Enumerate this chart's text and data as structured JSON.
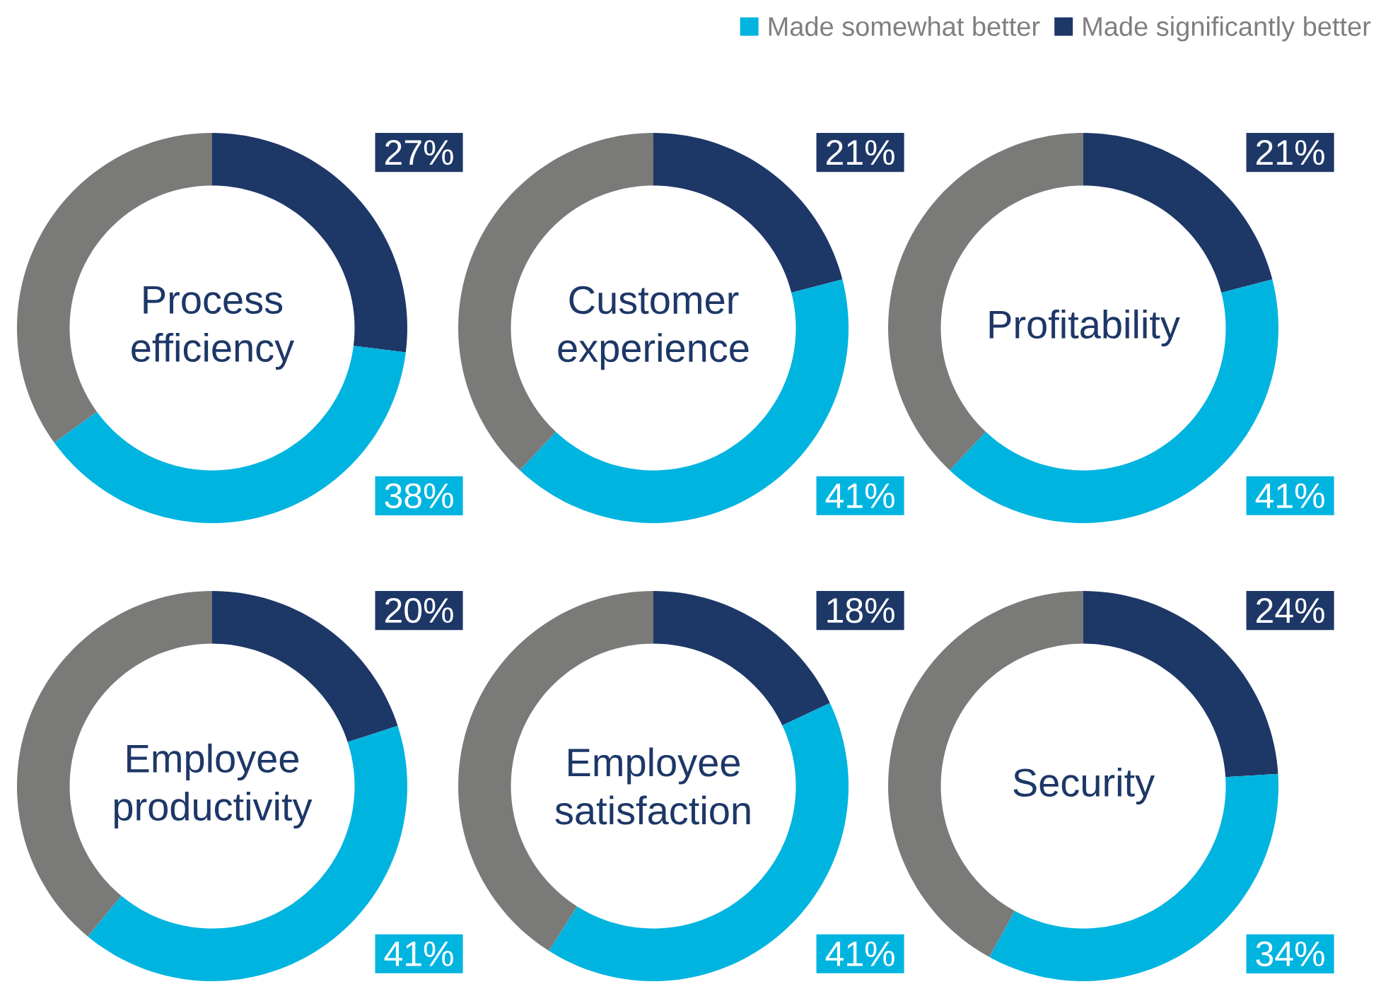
{
  "chart_data": [
    {
      "type": "donut",
      "title": "Process efficiency",
      "categories": [
        "Made significantly better",
        "Made somewhat better",
        null
      ],
      "values": [
        27,
        38,
        35
      ],
      "colors": [
        "#1d3767",
        "#00b4e0",
        "#7a7a78"
      ],
      "value_labels": [
        "27%",
        "38%",
        null
      ],
      "legend": "top right"
    },
    {
      "type": "donut",
      "title": "Customer experience",
      "categories": [
        null,
        null,
        null
      ],
      "values": [
        21,
        41,
        38
      ],
      "colors": [
        "#1d3767",
        "#00b4e0",
        "#7a7a78"
      ],
      "value_labels": [
        "21%",
        "41%",
        null
      ]
    },
    {
      "type": "donut",
      "title": "Profitability",
      "categories": [
        null,
        null,
        null
      ],
      "values": [
        21,
        41,
        38
      ],
      "colors": [
        "#1d3767",
        "#00b4e0",
        "#7a7a78"
      ],
      "value_labels": [
        "21%",
        "41%",
        null
      ]
    },
    {
      "type": "donut",
      "title": "Employee productivity",
      "categories": [
        null,
        null,
        null
      ],
      "values": [
        20,
        41,
        39
      ],
      "colors": [
        "#1d3767",
        "#00b4e0",
        "#7a7a78"
      ],
      "value_labels": [
        "20%",
        "41%",
        null
      ]
    },
    {
      "type": "donut",
      "title": "Employee satisfaction",
      "categories": [
        null,
        null,
        null
      ],
      "values": [
        18,
        41,
        41
      ],
      "colors": [
        "#1d3767",
        "#00b4e0",
        "#7a7a78"
      ],
      "value_labels": [
        "18%",
        "41%",
        null
      ]
    },
    {
      "type": "donut",
      "title": "Security",
      "categories": [
        null,
        null,
        null
      ],
      "values": [
        24,
        34,
        42
      ],
      "colors": [
        "#1d3767",
        "#00b4e0",
        "#7a7a78"
      ],
      "value_labels": [
        "24%",
        "34%",
        null
      ]
    }
  ]
}
